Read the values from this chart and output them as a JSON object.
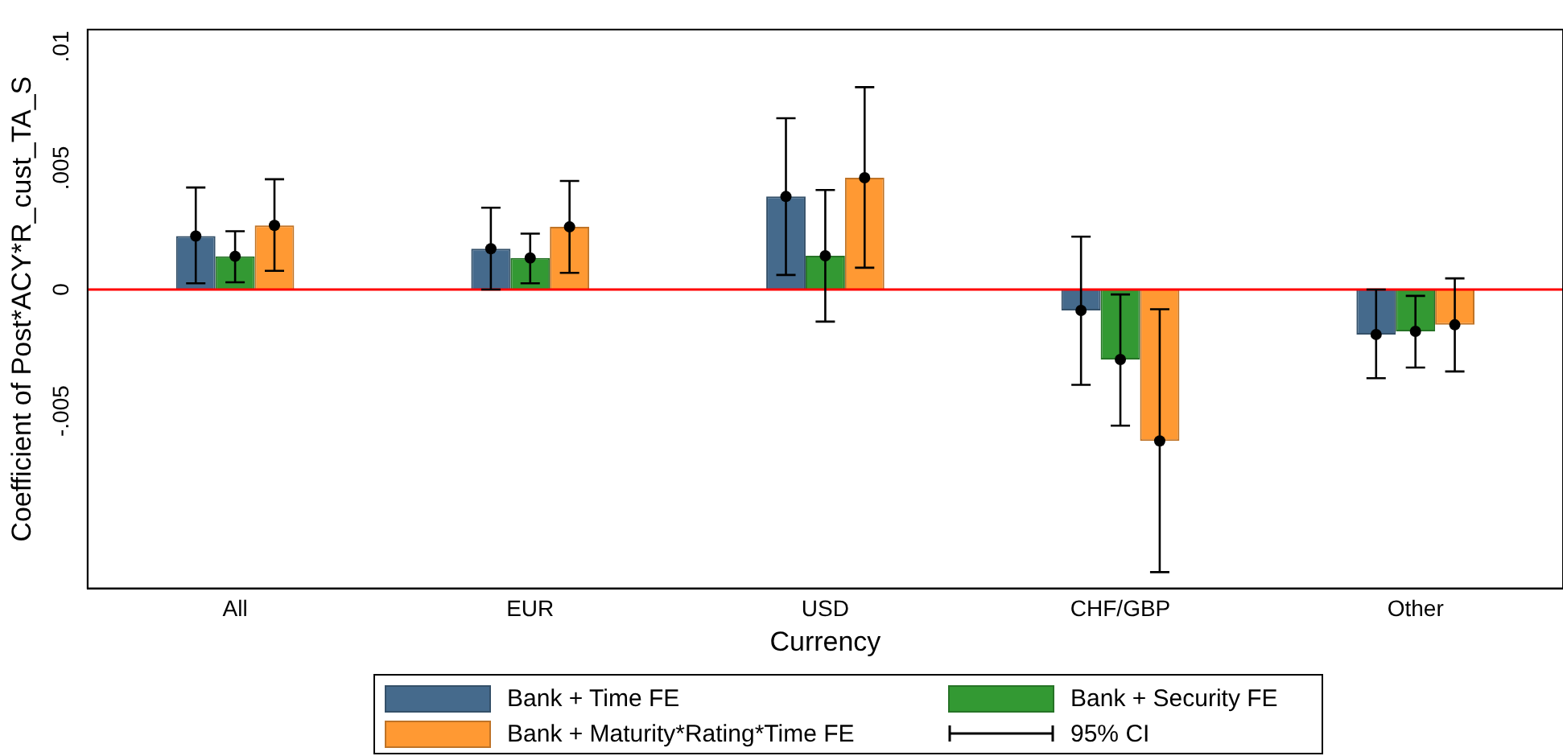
{
  "chart_data": {
    "type": "bar",
    "xlabel": "Currency",
    "ylabel": "Coefficient of Post*ACY*R_cust_TA_S",
    "categories": [
      "All",
      "EUR",
      "USD",
      "CHF/GBP",
      "Other"
    ],
    "series": [
      {
        "name": "Bank + Time FE",
        "color": "#456a8c",
        "values": [
          0.0022,
          0.00168,
          0.00383,
          -0.00086,
          -0.00185
        ],
        "errors": [
          [
            0.00026,
            0.0042
          ],
          [
            0,
            0.00337
          ],
          [
            0.0006,
            0.00705
          ],
          [
            -0.00392,
            0.00218
          ],
          [
            -0.00365,
            0
          ]
        ]
      },
      {
        "name": "Bank + Security FE",
        "color": "#339933",
        "values": [
          0.00137,
          0.0013,
          0.00139,
          -0.00288,
          -0.00172
        ],
        "errors": [
          [
            0.0003,
            0.0024
          ],
          [
            0.00026,
            0.0023
          ],
          [
            -0.00132,
            0.0041
          ],
          [
            -0.0056,
            -0.0002
          ],
          [
            -0.00321,
            -0.00026
          ]
        ]
      },
      {
        "name": "Bank + Maturity*Rating*Time FE",
        "color": "#ff9933",
        "values": [
          0.00264,
          0.00258,
          0.0046,
          -0.00623,
          -0.00145
        ],
        "errors": [
          [
            0.00077,
            0.00454
          ],
          [
            0.00069,
            0.00447
          ],
          [
            0.0009,
            0.00833
          ],
          [
            -0.01163,
            -0.00081
          ],
          [
            -0.00337,
            0.00046
          ]
        ]
      },
      {
        "type": "scatter",
        "color": "#000000",
        "x": [
          "All",
          "EUR",
          "USD",
          "CHF/GBP",
          "Other"
        ],
        "values": [
          0.0022,
          0.00168,
          0.00383,
          -0.00086,
          -0.00185
        ]
      },
      {
        "type": "scatter",
        "color": "#000000",
        "x": [
          "All",
          "EUR",
          "USD",
          "CHF/GBP",
          "Other"
        ],
        "values": [
          0.00137,
          0.0013,
          0.00139,
          -0.00288,
          -0.00172
        ]
      },
      {
        "type": "scatter",
        "color": "#000000",
        "x": [
          "All",
          "EUR",
          "USD",
          "CHF/GBP",
          "Other"
        ],
        "values": [
          0.00264,
          0.00258,
          0.0046,
          -0.00623,
          -0.00145
        ]
      }
    ],
    "ylim": [
      -0.0123,
      0.0107
    ],
    "yticks": [
      {
        "value": -0.005,
        "label": "-.005"
      },
      0,
      {
        "value": 0.005,
        "label": ".005"
      },
      {
        "value": 0.01,
        "label": ".01"
      }
    ],
    "ref_lines": [
      {
        "axis": "y",
        "value": 0,
        "color": "#ff0000"
      }
    ],
    "marker": "circle",
    "grid": false,
    "legend": "bottom",
    "annotations": [
      "95% CI"
    ]
  }
}
